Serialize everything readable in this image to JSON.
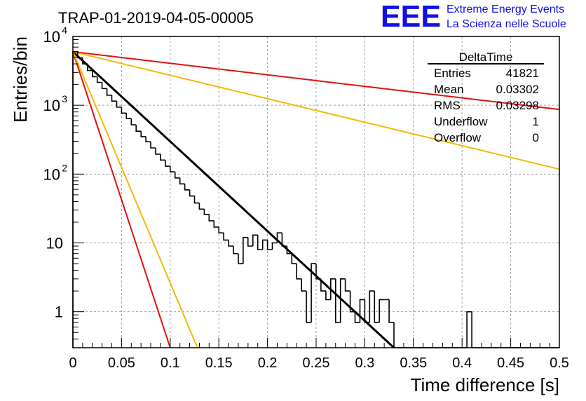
{
  "title": "TRAP-01-2019-04-05-00005",
  "logo": {
    "mark": "EEE",
    "line1": "Extreme Energy Events",
    "line2": "La Scienza nelle Scuole",
    "color": "#1010e6"
  },
  "stats_box": {
    "name": "DeltaTime",
    "rows": [
      {
        "label": "Entries",
        "value": "41821"
      },
      {
        "label": "Mean",
        "value": "0.03302"
      },
      {
        "label": "RMS",
        "value": "0.03298"
      },
      {
        "label": "Underflow",
        "value": "1"
      },
      {
        "label": "Overflow",
        "value": "0"
      }
    ]
  },
  "chart_data": {
    "type": "line",
    "xlabel": "Time difference [s]",
    "ylabel": "Entries/bin",
    "xlim": [
      0,
      0.5
    ],
    "ylim": [
      0.3,
      10000
    ],
    "y_scale": "log",
    "grid": true,
    "x_ticks": [
      "0",
      "0.05",
      "0.1",
      "0.15",
      "0.2",
      "0.25",
      "0.3",
      "0.35",
      "0.4",
      "0.45",
      "0.5"
    ],
    "y_ticks": [
      {
        "base": "1",
        "exp": "",
        "value": 1
      },
      {
        "base": "10",
        "exp": "",
        "value": 10
      },
      {
        "base": "10",
        "exp": "2",
        "value": 100
      },
      {
        "base": "10",
        "exp": "3",
        "value": 1000
      },
      {
        "base": "10",
        "exp": "4",
        "value": 10000
      }
    ],
    "histogram": {
      "bin_width": 0.005,
      "color": "#000000",
      "values": [
        6000,
        4900,
        4000,
        3200,
        2600,
        2150,
        1750,
        1400,
        1150,
        940,
        770,
        640,
        520,
        420,
        350,
        295,
        240,
        195,
        160,
        130,
        108,
        88,
        72,
        59,
        48,
        38,
        31,
        26,
        21,
        17,
        14,
        11,
        9,
        7,
        5,
        12,
        9,
        13,
        8,
        11,
        8,
        10,
        14,
        9,
        7,
        5,
        3,
        2,
        0.7,
        5,
        3,
        2,
        1.5,
        3,
        0.7,
        3,
        2,
        1,
        0.7,
        1.5,
        0.7,
        2,
        0.7,
        1.5,
        1.5,
        0.7,
        0,
        0,
        0,
        0,
        0,
        0,
        0,
        0,
        0,
        0,
        0,
        0,
        0,
        0,
        0,
        1,
        0,
        0,
        0,
        0,
        0,
        0,
        0,
        0,
        0,
        0,
        0,
        0,
        0,
        0,
        0,
        0,
        0,
        0
      ]
    },
    "series": [
      {
        "kind": "fit",
        "color": "#000000",
        "width": 3,
        "x": [
          0.0,
          0.33
        ],
        "y": [
          6000,
          0.3
        ]
      },
      {
        "color": "#e01010",
        "width": 2,
        "x": [
          0.0,
          0.1
        ],
        "y": [
          6000,
          0.3
        ]
      },
      {
        "color": "#f5b800",
        "width": 2,
        "x": [
          0.0,
          0.128
        ],
        "y": [
          6000,
          0.3
        ]
      },
      {
        "color": "#e01010",
        "width": 2,
        "x": [
          0.0,
          0.5
        ],
        "y": [
          6000,
          870
        ]
      },
      {
        "color": "#f5b800",
        "width": 2,
        "x": [
          0.0,
          0.5
        ],
        "y": [
          6000,
          118
        ]
      }
    ]
  }
}
